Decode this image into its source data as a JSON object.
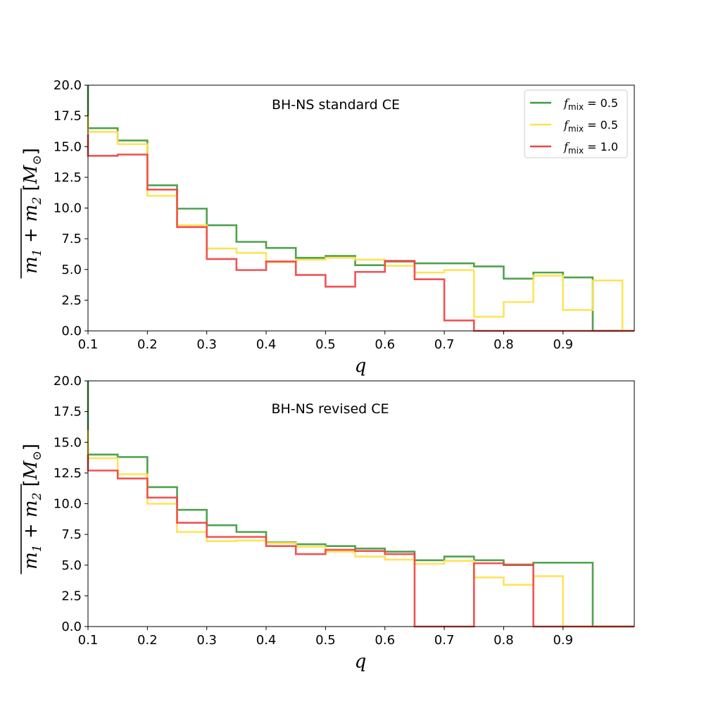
{
  "colors": {
    "green": "#3f9a3f",
    "yellow": "#ffe14a",
    "red": "#ef4444"
  },
  "chart_data": [
    {
      "type": "step-histogram",
      "title": "BH-NS standard CE",
      "xlabel": "q",
      "ylabel": "m₁ + m₂ [M⊙]",
      "ylabel_parts": {
        "main": "m",
        "sub1": "1",
        "plus": " + ",
        "sub2": "2",
        "unit_open": " [",
        "unit": "M",
        "unit_sub": "⊙",
        "unit_close": "]"
      },
      "xlim": [
        0.1,
        1.02
      ],
      "ylim": [
        0,
        20
      ],
      "xticks": [
        0.1,
        0.2,
        0.3,
        0.4,
        0.5,
        0.6,
        0.7,
        0.8,
        0.9
      ],
      "xtick_labels": [
        "0.1",
        "0.2",
        "0.3",
        "0.4",
        "0.5",
        "0.6",
        "0.7",
        "0.8",
        "0.9"
      ],
      "yticks": [
        0,
        2.5,
        5,
        7.5,
        10,
        12.5,
        15,
        17.5,
        20
      ],
      "ytick_labels": [
        "0.0",
        "2.5",
        "5.0",
        "7.5",
        "10.0",
        "12.5",
        "15.0",
        "17.5",
        "20.0"
      ],
      "bin_edges": [
        0.1,
        0.15,
        0.2,
        0.25,
        0.3,
        0.35,
        0.4,
        0.45,
        0.5,
        0.55,
        0.6,
        0.65,
        0.7,
        0.75,
        0.8,
        0.85,
        0.9,
        0.95,
        1.0,
        1.02
      ],
      "legend": {
        "placement": "top-right"
      },
      "series": [
        {
          "name": "f_mix = 0.5",
          "label_base": "f",
          "label_sub": "mix",
          "label_rest": " = 0.5",
          "color": "green",
          "start_value": 20,
          "values": [
            16.5,
            15.5,
            11.85,
            9.95,
            8.6,
            7.25,
            6.75,
            5.95,
            6.1,
            5.35,
            5.65,
            5.5,
            5.5,
            5.25,
            4.25,
            4.75,
            4.35,
            0,
            0
          ]
        },
        {
          "name": "f_mix = 0.5",
          "label_base": "f",
          "label_sub": "mix",
          "label_rest": " = 0.5",
          "color": "yellow",
          "start_value": 17.5,
          "values": [
            16.2,
            15.2,
            11.0,
            8.6,
            6.7,
            6.35,
            5.6,
            5.8,
            5.95,
            5.8,
            5.3,
            4.75,
            4.95,
            1.15,
            2.35,
            4.5,
            1.7,
            4.1,
            0
          ]
        },
        {
          "name": "f_mix = 1.0",
          "label_base": "f",
          "label_sub": "mix",
          "label_rest": " = 1.0",
          "color": "red",
          "start_value": 16,
          "values": [
            14.25,
            14.35,
            11.5,
            8.45,
            5.85,
            4.95,
            5.65,
            4.55,
            3.6,
            4.8,
            5.7,
            4.2,
            0.85,
            0,
            0,
            0,
            0,
            0,
            0
          ]
        }
      ]
    },
    {
      "type": "step-histogram",
      "title": "BH-NS revised CE",
      "xlabel": "q",
      "ylabel": "m₁ + m₂ [M⊙]",
      "ylabel_parts": {
        "main": "m",
        "sub1": "1",
        "plus": " + ",
        "sub2": "2",
        "unit_open": " [",
        "unit": "M",
        "unit_sub": "⊙",
        "unit_close": "]"
      },
      "xlim": [
        0.1,
        1.02
      ],
      "ylim": [
        0,
        20
      ],
      "xticks": [
        0.1,
        0.2,
        0.3,
        0.4,
        0.5,
        0.6,
        0.7,
        0.8,
        0.9
      ],
      "xtick_labels": [
        "0.1",
        "0.2",
        "0.3",
        "0.4",
        "0.5",
        "0.6",
        "0.7",
        "0.8",
        "0.9"
      ],
      "yticks": [
        0,
        2.5,
        5,
        7.5,
        10,
        12.5,
        15,
        17.5,
        20
      ],
      "ytick_labels": [
        "0.0",
        "2.5",
        "5.0",
        "7.5",
        "10.0",
        "12.5",
        "15.0",
        "17.5",
        "20.0"
      ],
      "bin_edges": [
        0.1,
        0.15,
        0.2,
        0.25,
        0.3,
        0.35,
        0.4,
        0.45,
        0.5,
        0.55,
        0.6,
        0.65,
        0.7,
        0.75,
        0.8,
        0.85,
        0.9,
        0.95,
        1.0,
        1.02
      ],
      "series": [
        {
          "name": "f_mix = 0.5",
          "color": "green",
          "start_value": 20,
          "values": [
            14.0,
            13.8,
            11.35,
            9.5,
            8.25,
            7.7,
            6.85,
            6.7,
            6.55,
            6.35,
            6.1,
            5.4,
            5.7,
            5.4,
            5.0,
            5.2,
            5.2,
            0,
            0
          ]
        },
        {
          "name": "f_mix = 0.5",
          "color": "yellow",
          "start_value": 16,
          "values": [
            13.7,
            12.4,
            10.0,
            7.7,
            6.95,
            7.0,
            6.8,
            6.5,
            6.1,
            5.7,
            5.45,
            5.1,
            5.35,
            4.0,
            3.4,
            4.1,
            0,
            0,
            0
          ]
        },
        {
          "name": "f_mix = 1.0",
          "color": "red",
          "start_value": 14,
          "values": [
            12.7,
            12.05,
            10.5,
            8.45,
            7.3,
            7.3,
            6.55,
            5.9,
            6.25,
            6.15,
            5.9,
            0,
            0,
            5.15,
            5.05,
            0,
            0,
            0,
            0
          ]
        }
      ]
    }
  ]
}
